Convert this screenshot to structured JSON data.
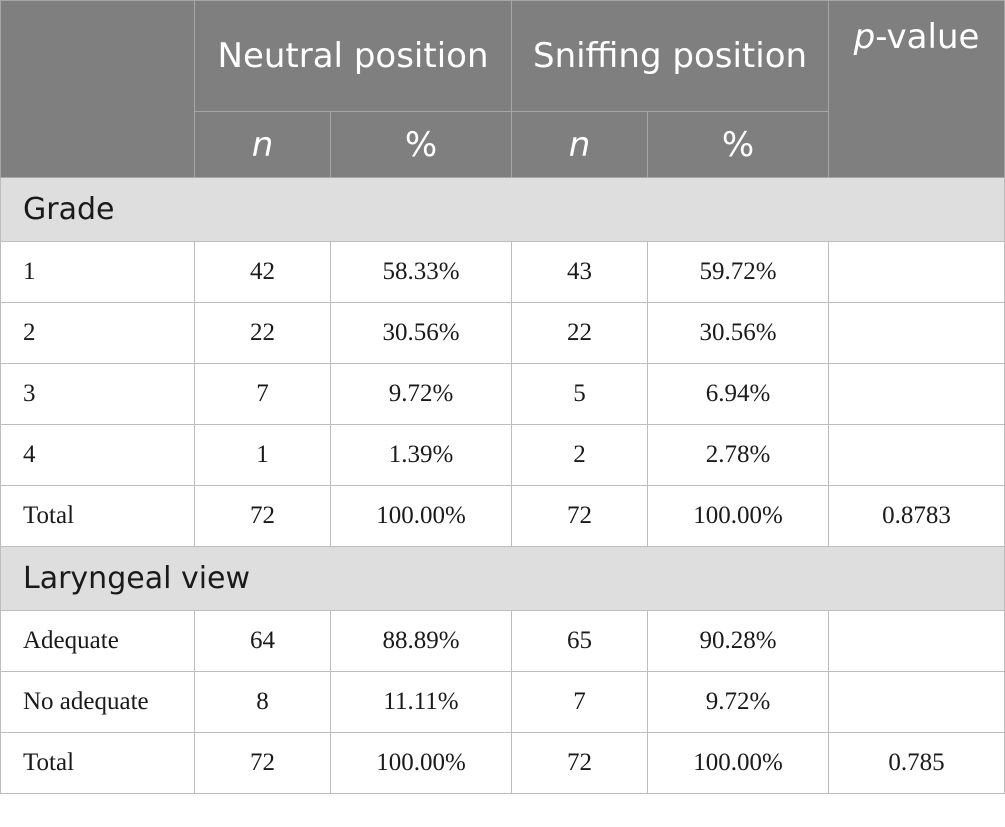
{
  "header": {
    "group_neutral": "Neutral position",
    "group_sniffing": "Sniffing position",
    "pvalue_italic": "p",
    "pvalue_rest": "-value",
    "sub_n": "n",
    "sub_pct": "%"
  },
  "sections": [
    {
      "title": "Grade",
      "rows": [
        {
          "label": "1",
          "n1": "42",
          "p1": "58.33%",
          "n2": "43",
          "p2": "59.72%",
          "pval": ""
        },
        {
          "label": "2",
          "n1": "22",
          "p1": "30.56%",
          "n2": "22",
          "p2": "30.56%",
          "pval": ""
        },
        {
          "label": "3",
          "n1": "7",
          "p1": "9.72%",
          "n2": "5",
          "p2": "6.94%",
          "pval": ""
        },
        {
          "label": "4",
          "n1": "1",
          "p1": "1.39%",
          "n2": "2",
          "p2": "2.78%",
          "pval": ""
        },
        {
          "label": "Total",
          "n1": "72",
          "p1": "100.00%",
          "n2": "72",
          "p2": "100.00%",
          "pval": "0.8783"
        }
      ]
    },
    {
      "title": "Laryngeal view",
      "rows": [
        {
          "label": "Adequate",
          "n1": "64",
          "p1": "88.89%",
          "n2": "65",
          "p2": "90.28%",
          "pval": ""
        },
        {
          "label": "No adequate",
          "n1": "8",
          "p1": "11.11%",
          "n2": "7",
          "p2": "9.72%",
          "pval": ""
        },
        {
          "label": "Total",
          "n1": "72",
          "p1": "100.00%",
          "n2": "72",
          "p2": "100.00%",
          "pval": "0.785"
        }
      ]
    }
  ]
}
